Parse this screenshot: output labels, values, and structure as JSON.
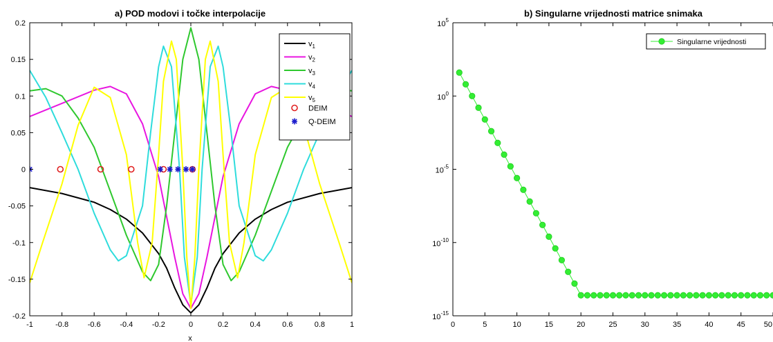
{
  "chart_data": [
    {
      "type": "line",
      "title": "a) POD modovi i točke interpolacije",
      "xlabel": "x",
      "ylabel": "",
      "xlim": [
        -1,
        1
      ],
      "ylim": [
        -0.2,
        0.2
      ],
      "xticks": [
        "-1",
        "-0.8",
        "-0.6",
        "-0.4",
        "-0.2",
        "0",
        "0.2",
        "0.4",
        "0.6",
        "0.8",
        "1"
      ],
      "xtick_values": [
        -1,
        -0.8,
        -0.6,
        -0.4,
        -0.2,
        0,
        0.2,
        0.4,
        0.6,
        0.8,
        1
      ],
      "yticks": [
        "-0.2",
        "-0.15",
        "-0.1",
        "-0.05",
        "0",
        "0.05",
        "0.1",
        "0.15",
        "0.2"
      ],
      "ytick_values": [
        -0.2,
        -0.15,
        -0.1,
        -0.05,
        0,
        0.05,
        0.1,
        0.15,
        0.2
      ],
      "grid": false,
      "legend_position": "top-right",
      "series": [
        {
          "name": "v",
          "sub": "1",
          "color": "#000000",
          "x": [
            -1,
            -0.8,
            -0.6,
            -0.5,
            -0.4,
            -0.3,
            -0.2,
            -0.15,
            -0.1,
            -0.05,
            0,
            0.05,
            0.1,
            0.15,
            0.2,
            0.3,
            0.4,
            0.5,
            0.6,
            0.8,
            1
          ],
          "y": [
            -0.025,
            -0.033,
            -0.045,
            -0.055,
            -0.068,
            -0.087,
            -0.115,
            -0.135,
            -0.162,
            -0.185,
            -0.196,
            -0.185,
            -0.162,
            -0.135,
            -0.115,
            -0.087,
            -0.068,
            -0.055,
            -0.045,
            -0.033,
            -0.025
          ]
        },
        {
          "name": "v",
          "sub": "2",
          "color": "#e815e0",
          "x": [
            -1,
            -0.8,
            -0.6,
            -0.5,
            -0.4,
            -0.3,
            -0.2,
            -0.1,
            -0.05,
            0,
            0.05,
            0.1,
            0.2,
            0.3,
            0.4,
            0.5,
            0.6,
            0.8,
            1
          ],
          "y": [
            0.072,
            0.09,
            0.108,
            0.113,
            0.103,
            0.062,
            -0.01,
            -0.12,
            -0.17,
            -0.19,
            -0.17,
            -0.12,
            -0.01,
            0.062,
            0.103,
            0.113,
            0.108,
            0.09,
            0.072
          ]
        },
        {
          "name": "v",
          "sub": "3",
          "color": "#2ec82e",
          "x": [
            -1,
            -0.9,
            -0.8,
            -0.7,
            -0.6,
            -0.5,
            -0.4,
            -0.3,
            -0.25,
            -0.2,
            -0.15,
            -0.1,
            -0.05,
            0,
            0.05,
            0.1,
            0.15,
            0.2,
            0.25,
            0.3,
            0.4,
            0.5,
            0.6,
            0.7,
            0.8,
            0.9,
            1
          ],
          "y": [
            0.107,
            0.11,
            0.1,
            0.07,
            0.03,
            -0.03,
            -0.09,
            -0.14,
            -0.152,
            -0.13,
            -0.05,
            0.05,
            0.15,
            0.193,
            0.15,
            0.05,
            -0.05,
            -0.13,
            -0.152,
            -0.14,
            -0.09,
            -0.03,
            0.03,
            0.07,
            0.1,
            0.11,
            0.107
          ]
        },
        {
          "name": "v",
          "sub": "4",
          "color": "#2edcdc",
          "x": [
            -1,
            -0.9,
            -0.8,
            -0.7,
            -0.6,
            -0.5,
            -0.45,
            -0.4,
            -0.3,
            -0.25,
            -0.2,
            -0.17,
            -0.12,
            -0.07,
            -0.04,
            0,
            0.04,
            0.07,
            0.12,
            0.17,
            0.2,
            0.25,
            0.3,
            0.4,
            0.45,
            0.5,
            0.6,
            0.7,
            0.8,
            0.9,
            1
          ],
          "y": [
            0.135,
            0.098,
            0.05,
            0.0,
            -0.06,
            -0.11,
            -0.125,
            -0.118,
            -0.05,
            0.05,
            0.14,
            0.168,
            0.14,
            0.0,
            -0.12,
            -0.185,
            -0.12,
            0.0,
            0.14,
            0.168,
            0.14,
            0.05,
            -0.05,
            -0.118,
            -0.125,
            -0.11,
            -0.06,
            0.0,
            0.05,
            0.098,
            0.135
          ]
        },
        {
          "name": "v",
          "sub": "5",
          "color": "#ffff00",
          "x": [
            -1,
            -0.92,
            -0.8,
            -0.7,
            -0.6,
            -0.5,
            -0.4,
            -0.33,
            -0.29,
            -0.24,
            -0.2,
            -0.17,
            -0.12,
            -0.09,
            -0.05,
            -0.025,
            0,
            0.025,
            0.05,
            0.09,
            0.12,
            0.17,
            0.2,
            0.24,
            0.29,
            0.33,
            0.4,
            0.5,
            0.6,
            0.7,
            0.8,
            0.92,
            1
          ],
          "y": [
            -0.155,
            -0.1,
            -0.02,
            0.06,
            0.112,
            0.098,
            0.02,
            -0.1,
            -0.148,
            -0.1,
            0.02,
            0.12,
            0.175,
            0.15,
            0.0,
            -0.12,
            -0.19,
            -0.12,
            0.0,
            0.15,
            0.175,
            0.12,
            0.02,
            -0.1,
            -0.148,
            -0.1,
            0.02,
            0.098,
            0.112,
            0.06,
            -0.02,
            -0.1,
            -0.155
          ]
        }
      ],
      "markers": [
        {
          "name": "DEIM",
          "symbol": "circle",
          "color": "#e02020",
          "x": [
            -0.81,
            -0.56,
            -0.37,
            -0.17,
            0.01
          ],
          "y": [
            0,
            0,
            0,
            0,
            0
          ]
        },
        {
          "name": "Q-DEIM",
          "symbol": "asterisk",
          "color": "#1a1acc",
          "x": [
            -1,
            -0.19,
            -0.13,
            -0.08,
            -0.03,
            0.01
          ],
          "y": [
            0,
            0,
            0,
            0,
            0,
            0
          ]
        }
      ]
    },
    {
      "type": "line",
      "title": "b) Singularne vrijednosti matrice snimaka",
      "xlabel": "",
      "ylabel": "",
      "yscale": "log",
      "xlim": [
        0,
        50
      ],
      "ylim_exponent": [
        -15,
        5
      ],
      "xticks": [
        "0",
        "5",
        "10",
        "15",
        "20",
        "25",
        "30",
        "35",
        "40",
        "45",
        "50"
      ],
      "xtick_values": [
        0,
        5,
        10,
        15,
        20,
        25,
        30,
        35,
        40,
        45,
        50
      ],
      "yticks": [
        {
          "base": "10",
          "exp": "-15",
          "value": -15
        },
        {
          "base": "10",
          "exp": "-10",
          "value": -10
        },
        {
          "base": "10",
          "exp": "-5",
          "value": -5
        },
        {
          "base": "10",
          "exp": "0",
          "value": 0
        },
        {
          "base": "10",
          "exp": "5",
          "value": 5
        }
      ],
      "grid": false,
      "legend_position": "top-right",
      "series": [
        {
          "name": "Singularne vrijednosti",
          "color": "#33ee33",
          "x": [
            1,
            2,
            3,
            4,
            5,
            6,
            7,
            8,
            9,
            10,
            11,
            12,
            13,
            14,
            15,
            16,
            17,
            18,
            19,
            20,
            21,
            22,
            23,
            24,
            25,
            26,
            27,
            28,
            29,
            30,
            31,
            32,
            33,
            34,
            35,
            36,
            37,
            38,
            39,
            40,
            41,
            42,
            43,
            44,
            45,
            46,
            47,
            48,
            49,
            50
          ],
          "log10_y": [
            1.6,
            0.8,
            0,
            -0.8,
            -1.6,
            -2.4,
            -3.2,
            -4.0,
            -4.8,
            -5.6,
            -6.4,
            -7.2,
            -8.0,
            -8.8,
            -9.6,
            -10.4,
            -11.2,
            -12.0,
            -12.8,
            -13.6,
            -13.6,
            -13.6,
            -13.6,
            -13.6,
            -13.6,
            -13.6,
            -13.6,
            -13.6,
            -13.6,
            -13.6,
            -13.6,
            -13.6,
            -13.6,
            -13.6,
            -13.6,
            -13.6,
            -13.6,
            -13.6,
            -13.6,
            -13.6,
            -13.6,
            -13.6,
            -13.6,
            -13.6,
            -13.6,
            -13.6,
            -13.6,
            -13.6,
            -13.6,
            -13.6
          ]
        }
      ]
    }
  ]
}
